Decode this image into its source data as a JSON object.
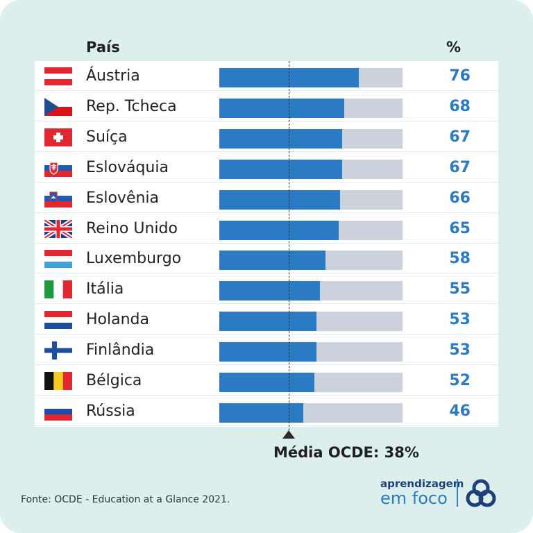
{
  "header": {
    "country": "País",
    "percent": "%"
  },
  "average": {
    "label": "Média OCDE: 38%",
    "value": 38
  },
  "source": "Fonte: OCDE - Education at a Glance 2021.",
  "brand": {
    "line1": "aprendizagem",
    "line2": "em foco"
  },
  "colors": {
    "bar": "#2b7bc4",
    "track": "#ccd2dc",
    "background": "#dcefed",
    "text_blue": "#2b7bc4"
  },
  "chart_data": {
    "type": "bar",
    "orientation": "horizontal",
    "xlim": [
      0,
      100
    ],
    "categories": [
      "Áustria",
      "Rep. Tcheca",
      "Suíça",
      "Eslováquia",
      "Eslovênia",
      "Reino Unido",
      "Luxemburgo",
      "Itália",
      "Holanda",
      "Finlândia",
      "Bélgica",
      "Rússia"
    ],
    "values": [
      76,
      68,
      67,
      67,
      66,
      65,
      58,
      55,
      53,
      53,
      52,
      46
    ],
    "flags": [
      "austria-flag",
      "czech-flag",
      "switzerland-flag",
      "slovakia-flag",
      "slovenia-flag",
      "uk-flag",
      "luxembourg-flag",
      "italy-flag",
      "netherlands-flag",
      "finland-flag",
      "belgium-flag",
      "russia-flag"
    ],
    "reference_line": {
      "label": "Média OCDE: 38%",
      "value": 38
    }
  }
}
